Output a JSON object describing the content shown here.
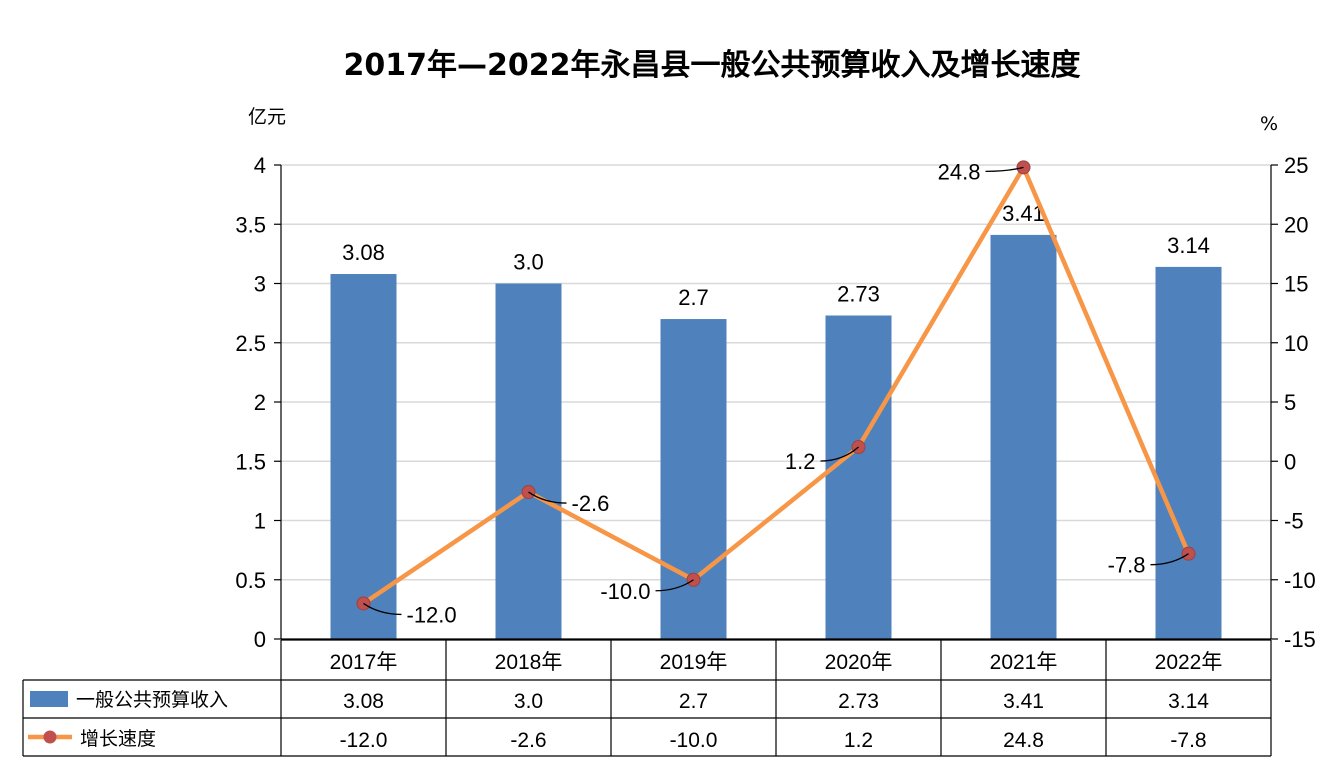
{
  "chart_data": {
    "type": "bar",
    "title": "2017年—2022年永昌县一般公共预算收入及增长速度",
    "y_left_unit": "亿元",
    "y_right_unit": "%",
    "categories": [
      "2017年",
      "2018年",
      "2019年",
      "2020年",
      "2021年",
      "2022年"
    ],
    "ylim_left": [
      0,
      4
    ],
    "yticks_left": [
      "0",
      "0.5",
      "1",
      "1.5",
      "2",
      "2.5",
      "3",
      "3.5",
      "4"
    ],
    "ylim_right": [
      -15,
      25
    ],
    "yticks_right": [
      "-15",
      "-10",
      "-5",
      "0",
      "5",
      "10",
      "15",
      "20",
      "25"
    ],
    "grid": true,
    "legend": "table-left",
    "series": [
      {
        "name": "一般公共预算收入",
        "type": "bar",
        "axis": "left",
        "color": "#4F81BD",
        "values": [
          3.08,
          3.0,
          2.7,
          2.73,
          3.41,
          3.14
        ],
        "labels": [
          "3.08",
          "3.0",
          "2.7",
          "2.73",
          "3.41",
          "3.14"
        ]
      },
      {
        "name": "增长速度",
        "type": "line",
        "axis": "right",
        "color": "#F79646",
        "marker_color": "#C0504D",
        "values": [
          -12.0,
          -2.6,
          -10.0,
          1.2,
          24.8,
          -7.8
        ],
        "labels": [
          "-12.0",
          "-2.6",
          "-10.0",
          "1.2",
          "24.8",
          "-7.8"
        ]
      }
    ]
  }
}
